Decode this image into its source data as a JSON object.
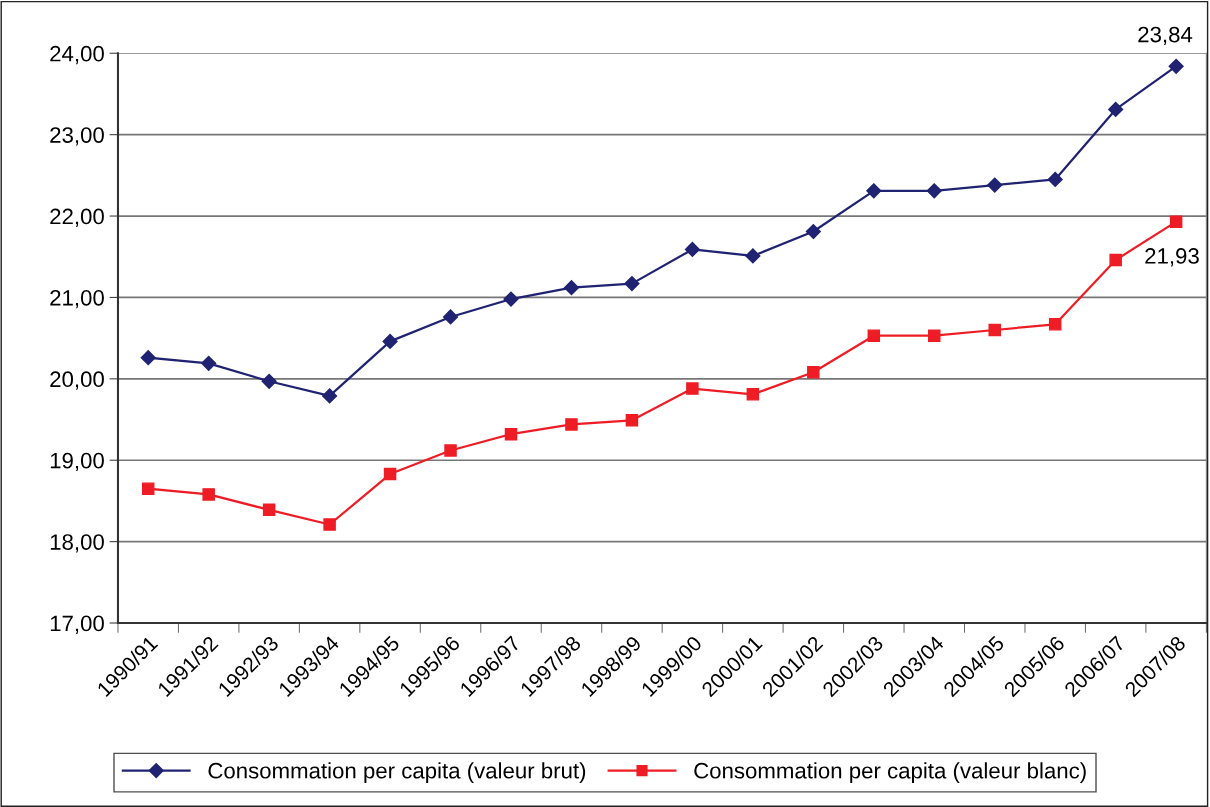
{
  "chart_data": {
    "type": "line",
    "categories": [
      "1990/91",
      "1991/92",
      "1992/93",
      "1993/94",
      "1994/95",
      "1995/96",
      "1996/97",
      "1997/98",
      "1998/99",
      "1999/00",
      "2000/01",
      "2001/02",
      "2002/03",
      "2003/04",
      "2004/05",
      "2005/06",
      "2006/07",
      "2007/08"
    ],
    "series": [
      {
        "name": "Consommation per capita (valeur brut)",
        "color": "#1f2372",
        "marker": "diamond",
        "values": [
          20.26,
          20.19,
          19.97,
          19.79,
          20.46,
          20.76,
          20.98,
          21.12,
          21.17,
          21.59,
          21.51,
          21.81,
          22.31,
          22.31,
          22.38,
          22.45,
          23.31,
          23.84
        ],
        "value_labels": [
          null,
          null,
          null,
          null,
          null,
          null,
          null,
          null,
          null,
          null,
          null,
          null,
          null,
          null,
          null,
          null,
          null,
          "23,84"
        ]
      },
      {
        "name": "Consommation per capita (valeur blanc)",
        "color": "#ee1c24",
        "marker": "square",
        "values": [
          18.65,
          18.58,
          18.39,
          18.21,
          18.83,
          19.12,
          19.32,
          19.44,
          19.49,
          19.88,
          19.81,
          20.08,
          20.53,
          20.53,
          20.6,
          20.67,
          21.46,
          21.93
        ],
        "value_labels": [
          null,
          null,
          null,
          null,
          null,
          null,
          null,
          null,
          null,
          null,
          null,
          null,
          null,
          null,
          null,
          null,
          null,
          "21,93"
        ]
      }
    ],
    "ylim": [
      17,
      24
    ],
    "yticks": [
      {
        "value": 17,
        "label": "17,00"
      },
      {
        "value": 18,
        "label": "18,00"
      },
      {
        "value": 19,
        "label": "19,00"
      },
      {
        "value": 20,
        "label": "20,00"
      },
      {
        "value": 21,
        "label": "21,00"
      },
      {
        "value": 22,
        "label": "22,00"
      },
      {
        "value": 23,
        "label": "23,00"
      },
      {
        "value": 24,
        "label": "24,00"
      }
    ],
    "grid": "y",
    "legend": "bottom",
    "line_style": "solid"
  }
}
